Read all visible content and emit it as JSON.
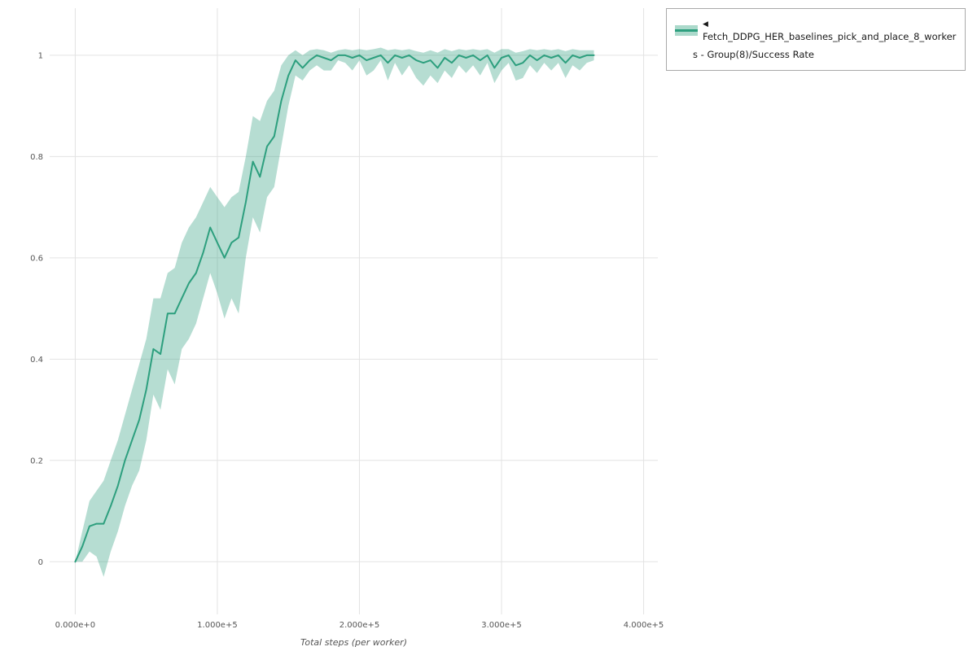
{
  "page": {
    "background": "#ffffff"
  },
  "legend": {
    "marker": "◀",
    "line1": "Fetch_DDPG_HER_baselines_pick_and_place_8_worker",
    "line2": "s - Group(8)/Success Rate",
    "line_color": "#2d9f7e",
    "band_color": "#2d9f7e"
  },
  "chart_data": {
    "type": "line",
    "title": "",
    "xlabel": "Total steps (per worker)",
    "ylabel": "",
    "grid": true,
    "legend_position": "top-right",
    "xlim": [
      -18000,
      410000
    ],
    "ylim": [
      -0.104,
      1.093
    ],
    "x_ticks": [
      0,
      100000,
      200000,
      300000,
      400000
    ],
    "x_tick_labels": [
      "0.000e+0",
      "1.000e+5",
      "2.000e+5",
      "3.000e+5",
      "4.000e+5"
    ],
    "y_ticks": [
      0,
      0.2,
      0.4,
      0.6,
      0.8,
      1
    ],
    "y_tick_labels": [
      "0",
      "0.2",
      "0.4",
      "0.6",
      "0.8",
      "1"
    ],
    "grid_color": "#e3e3e3",
    "series": [
      {
        "name": "Fetch_DDPG_HER_baselines_pick_and_place_8_workers - Group(8)/Success Rate",
        "color": "#2d9f7e",
        "band_opacity": 0.35,
        "x": [
          0,
          5000,
          10000,
          15000,
          20000,
          25000,
          30000,
          35000,
          40000,
          45000,
          50000,
          55000,
          60000,
          65000,
          70000,
          75000,
          80000,
          85000,
          90000,
          95000,
          100000,
          105000,
          110000,
          115000,
          120000,
          125000,
          130000,
          135000,
          140000,
          145000,
          150000,
          155000,
          160000,
          165000,
          170000,
          175000,
          180000,
          185000,
          190000,
          195000,
          200000,
          205000,
          210000,
          215000,
          220000,
          225000,
          230000,
          235000,
          240000,
          245000,
          250000,
          255000,
          260000,
          265000,
          270000,
          275000,
          280000,
          285000,
          290000,
          295000,
          300000,
          305000,
          310000,
          315000,
          320000,
          325000,
          330000,
          335000,
          340000,
          345000,
          350000,
          355000,
          360000,
          365000
        ],
        "mean": [
          0.0,
          0.03,
          0.07,
          0.075,
          0.075,
          0.11,
          0.15,
          0.2,
          0.24,
          0.28,
          0.34,
          0.42,
          0.41,
          0.49,
          0.49,
          0.52,
          0.55,
          0.57,
          0.61,
          0.66,
          0.63,
          0.6,
          0.63,
          0.64,
          0.71,
          0.79,
          0.76,
          0.82,
          0.84,
          0.91,
          0.96,
          0.99,
          0.975,
          0.99,
          1.0,
          0.995,
          0.99,
          1.0,
          1.0,
          0.995,
          1.0,
          0.99,
          0.995,
          1.0,
          0.985,
          1.0,
          0.995,
          1.0,
          0.99,
          0.985,
          0.99,
          0.975,
          0.995,
          0.985,
          1.0,
          0.995,
          1.0,
          0.99,
          1.0,
          0.975,
          0.995,
          1.0,
          0.98,
          0.985,
          1.0,
          0.99,
          1.0,
          0.995,
          1.0,
          0.985,
          1.0,
          0.995,
          1.0,
          1.0
        ],
        "lo": [
          0.0,
          0.0,
          0.02,
          0.01,
          -0.03,
          0.02,
          0.06,
          0.11,
          0.15,
          0.18,
          0.24,
          0.33,
          0.3,
          0.38,
          0.35,
          0.42,
          0.44,
          0.47,
          0.52,
          0.57,
          0.53,
          0.48,
          0.52,
          0.49,
          0.6,
          0.68,
          0.65,
          0.72,
          0.74,
          0.82,
          0.9,
          0.96,
          0.95,
          0.97,
          0.98,
          0.97,
          0.97,
          0.99,
          0.985,
          0.97,
          0.99,
          0.96,
          0.97,
          0.99,
          0.95,
          0.985,
          0.96,
          0.98,
          0.955,
          0.94,
          0.96,
          0.945,
          0.97,
          0.955,
          0.98,
          0.965,
          0.98,
          0.96,
          0.985,
          0.945,
          0.97,
          0.985,
          0.95,
          0.955,
          0.98,
          0.965,
          0.985,
          0.97,
          0.985,
          0.955,
          0.98,
          0.97,
          0.985,
          0.99
        ],
        "hi": [
          0.0,
          0.06,
          0.12,
          0.14,
          0.16,
          0.2,
          0.24,
          0.29,
          0.34,
          0.39,
          0.44,
          0.52,
          0.52,
          0.57,
          0.58,
          0.63,
          0.66,
          0.68,
          0.71,
          0.74,
          0.72,
          0.7,
          0.72,
          0.73,
          0.8,
          0.88,
          0.87,
          0.91,
          0.93,
          0.98,
          1.0,
          1.01,
          1.0,
          1.01,
          1.012,
          1.01,
          1.005,
          1.01,
          1.012,
          1.01,
          1.012,
          1.01,
          1.012,
          1.015,
          1.01,
          1.012,
          1.01,
          1.012,
          1.008,
          1.005,
          1.01,
          1.005,
          1.012,
          1.008,
          1.012,
          1.01,
          1.012,
          1.01,
          1.012,
          1.005,
          1.012,
          1.012,
          1.005,
          1.008,
          1.012,
          1.01,
          1.012,
          1.01,
          1.012,
          1.008,
          1.012,
          1.01,
          1.01,
          1.01
        ]
      }
    ]
  }
}
